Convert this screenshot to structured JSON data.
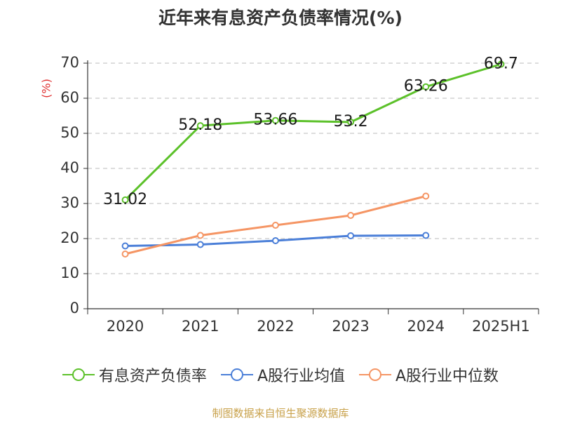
{
  "title": "近年来有息资产负债率情况(%)",
  "source": "制图数据来自恒生聚源数据库",
  "chart_data": {
    "type": "line",
    "title": "近年来有息资产负债率情况(%)",
    "ylabel": "(%)",
    "xlabel": "",
    "ylim": [
      0,
      70
    ],
    "yticks": [
      "0",
      "10",
      "20",
      "30",
      "40",
      "50",
      "60",
      "70"
    ],
    "categories": [
      "2020",
      "2021",
      "2022",
      "2023",
      "2024",
      "2025H1"
    ],
    "series": [
      {
        "name": "有息资产负债率",
        "color": "#5cc12a",
        "values": [
          31.02,
          52.18,
          53.66,
          53.2,
          63.26,
          69.7
        ],
        "labels": [
          "31.02",
          "52.18",
          "53.66",
          "53.2",
          "63.26",
          "69.7"
        ]
      },
      {
        "name": "A股行业均值",
        "color": "#4b7fd8",
        "values": [
          17.9,
          18.3,
          19.4,
          20.8,
          20.9,
          null
        ]
      },
      {
        "name": "A股行业中位数",
        "color": "#f59564",
        "values": [
          15.6,
          20.9,
          23.8,
          26.6,
          32.1,
          null
        ]
      }
    ]
  }
}
